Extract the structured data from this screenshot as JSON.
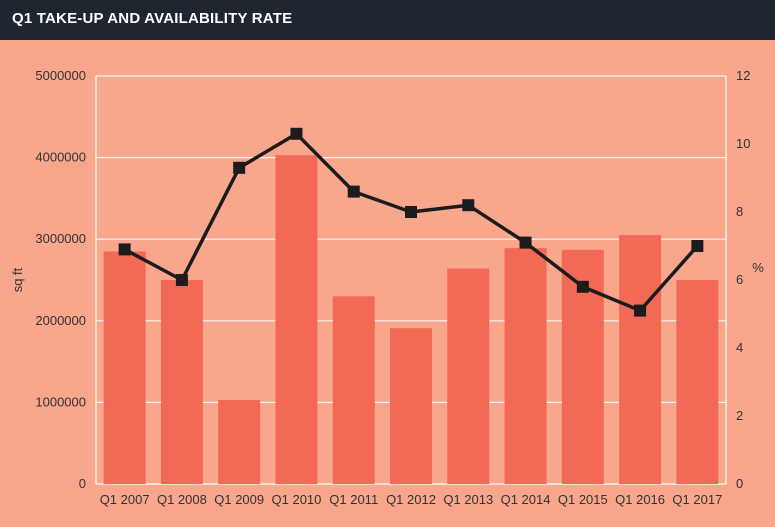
{
  "header": {
    "title": "Q1 TAKE-UP AND AVAILABILITY RATE"
  },
  "colors": {
    "background": "#f8a68c",
    "header": "#1f2630",
    "bar": "#f26a55",
    "line": "#1c1c1c",
    "grid": "#ffffff",
    "text": "#333333"
  },
  "chart_data": {
    "type": "bar",
    "title": "Q1 TAKE-UP AND AVAILABILITY RATE",
    "categories": [
      "Q1 2007",
      "Q1 2008",
      "Q1 2009",
      "Q1 2010",
      "Q1 2011",
      "Q1 2012",
      "Q1 2013",
      "Q1 2014",
      "Q1 2015",
      "Q1 2016",
      "Q1 2017"
    ],
    "series": [
      {
        "type": "bar",
        "axis": "left",
        "values": [
          2850000,
          2500000,
          1030000,
          4030000,
          2300000,
          1910000,
          2640000,
          2890000,
          2870000,
          3050000,
          2500000
        ]
      },
      {
        "type": "line",
        "axis": "right",
        "values": [
          6.9,
          6.0,
          9.3,
          10.3,
          8.6,
          8.0,
          8.2,
          7.1,
          5.8,
          5.1,
          7.0
        ]
      }
    ],
    "ylabel": "sq ft",
    "y2label": "%",
    "ylim": [
      0,
      5000000
    ],
    "y2lim": [
      0,
      12
    ],
    "yticks": [
      "0",
      "1000000",
      "2000000",
      "3000000",
      "4000000",
      "5000000"
    ],
    "y2ticks": [
      "0",
      "2",
      "4",
      "6",
      "8",
      "10",
      "12"
    ],
    "grid": true
  }
}
